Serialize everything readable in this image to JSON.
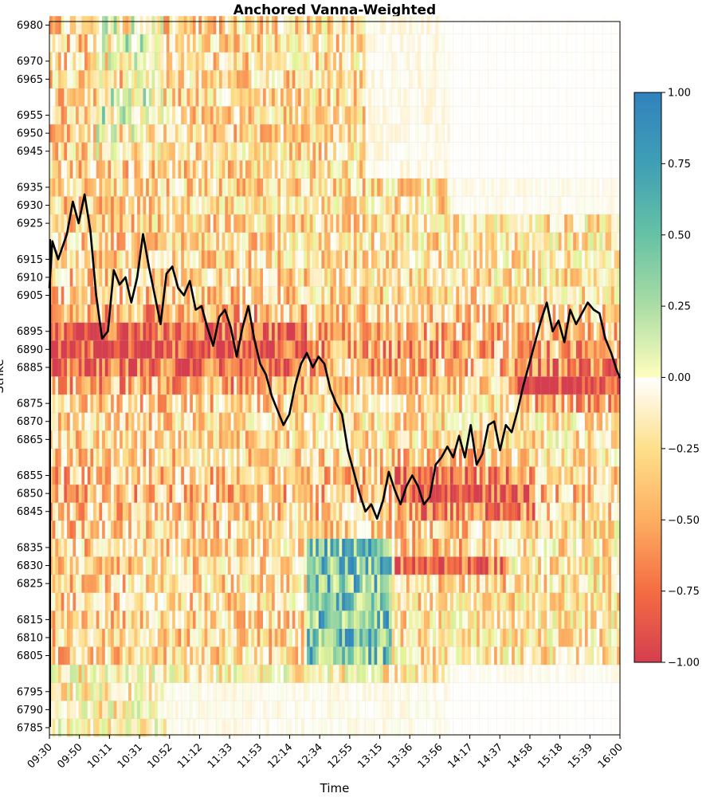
{
  "chart_data": {
    "type": "heatmap",
    "title": "Anchored Vanna-Weighted",
    "xlabel": "Time",
    "ylabel": "Strike",
    "x_ticks": [
      "09:30",
      "09:50",
      "10:11",
      "10:31",
      "10:52",
      "11:12",
      "11:33",
      "11:53",
      "12:14",
      "12:34",
      "12:55",
      "13:15",
      "13:36",
      "13:56",
      "14:17",
      "14:37",
      "14:58",
      "15:18",
      "15:39",
      "16:00"
    ],
    "y_ticks": [
      6980,
      6970,
      6965,
      6955,
      6950,
      6945,
      6935,
      6930,
      6925,
      6915,
      6910,
      6905,
      6895,
      6890,
      6885,
      6875,
      6870,
      6865,
      6855,
      6850,
      6845,
      6835,
      6830,
      6825,
      6815,
      6810,
      6805,
      6795,
      6790,
      6785
    ],
    "ylim": [
      6783,
      6981
    ],
    "strike_step": 5,
    "colorbar": {
      "colormap": "Spectral",
      "range": [
        -1.0,
        1.0
      ],
      "ticks": [
        "1.00",
        "0.75",
        "0.50",
        "0.25",
        "0.00",
        "−0.25",
        "−0.50",
        "−0.75",
        "−1.00"
      ],
      "tick_values": [
        1.0,
        0.75,
        0.5,
        0.25,
        0.0,
        -0.25,
        -0.5,
        -0.75,
        -1.0
      ]
    },
    "price_series": {
      "name": "Price",
      "color": "#000000",
      "points": [
        [
          0,
          6907
        ],
        [
          1,
          6920
        ],
        [
          3,
          6915
        ],
        [
          6,
          6922
        ],
        [
          8,
          6931
        ],
        [
          10,
          6925
        ],
        [
          12,
          6933
        ],
        [
          14,
          6923
        ],
        [
          16,
          6905
        ],
        [
          18,
          6893
        ],
        [
          20,
          6895
        ],
        [
          22,
          6912
        ],
        [
          24,
          6908
        ],
        [
          26,
          6910
        ],
        [
          28,
          6903
        ],
        [
          30,
          6910
        ],
        [
          32,
          6922
        ],
        [
          34,
          6913
        ],
        [
          36,
          6905
        ],
        [
          38,
          6897
        ],
        [
          40,
          6911
        ],
        [
          42,
          6913
        ],
        [
          44,
          6907
        ],
        [
          46,
          6905
        ],
        [
          48,
          6909
        ],
        [
          50,
          6901
        ],
        [
          52,
          6902
        ],
        [
          54,
          6896
        ],
        [
          56,
          6891
        ],
        [
          58,
          6899
        ],
        [
          60,
          6901
        ],
        [
          62,
          6896
        ],
        [
          64,
          6888
        ],
        [
          66,
          6896
        ],
        [
          68,
          6902
        ],
        [
          70,
          6893
        ],
        [
          72,
          6886
        ],
        [
          74,
          6883
        ],
        [
          76,
          6877
        ],
        [
          78,
          6873
        ],
        [
          80,
          6869
        ],
        [
          82,
          6872
        ],
        [
          84,
          6880
        ],
        [
          86,
          6886
        ],
        [
          88,
          6889
        ],
        [
          90,
          6885
        ],
        [
          92,
          6888
        ],
        [
          94,
          6886
        ],
        [
          96,
          6879
        ],
        [
          98,
          6875
        ],
        [
          100,
          6872
        ],
        [
          102,
          6862
        ],
        [
          104,
          6856
        ],
        [
          106,
          6850
        ],
        [
          108,
          6845
        ],
        [
          110,
          6847
        ],
        [
          112,
          6843
        ],
        [
          114,
          6848
        ],
        [
          116,
          6856
        ],
        [
          118,
          6851
        ],
        [
          120,
          6847
        ],
        [
          122,
          6852
        ],
        [
          124,
          6855
        ],
        [
          126,
          6852
        ],
        [
          128,
          6847
        ],
        [
          130,
          6849
        ],
        [
          132,
          6858
        ],
        [
          134,
          6860
        ],
        [
          136,
          6863
        ],
        [
          138,
          6860
        ],
        [
          140,
          6866
        ],
        [
          142,
          6860
        ],
        [
          144,
          6869
        ],
        [
          146,
          6858
        ],
        [
          148,
          6861
        ],
        [
          150,
          6869
        ],
        [
          152,
          6870
        ],
        [
          154,
          6862
        ],
        [
          156,
          6869
        ],
        [
          158,
          6867
        ],
        [
          160,
          6873
        ],
        [
          162,
          6880
        ],
        [
          164,
          6886
        ],
        [
          166,
          6892
        ],
        [
          168,
          6898
        ],
        [
          170,
          6903
        ],
        [
          172,
          6895
        ],
        [
          174,
          6898
        ],
        [
          176,
          6892
        ],
        [
          178,
          6901
        ],
        [
          180,
          6897
        ],
        [
          182,
          6900
        ],
        [
          184,
          6903
        ],
        [
          186,
          6901
        ],
        [
          188,
          6900
        ],
        [
          190,
          6893
        ],
        [
          192,
          6889
        ],
        [
          194,
          6884
        ],
        [
          195,
          6882
        ]
      ]
    }
  }
}
